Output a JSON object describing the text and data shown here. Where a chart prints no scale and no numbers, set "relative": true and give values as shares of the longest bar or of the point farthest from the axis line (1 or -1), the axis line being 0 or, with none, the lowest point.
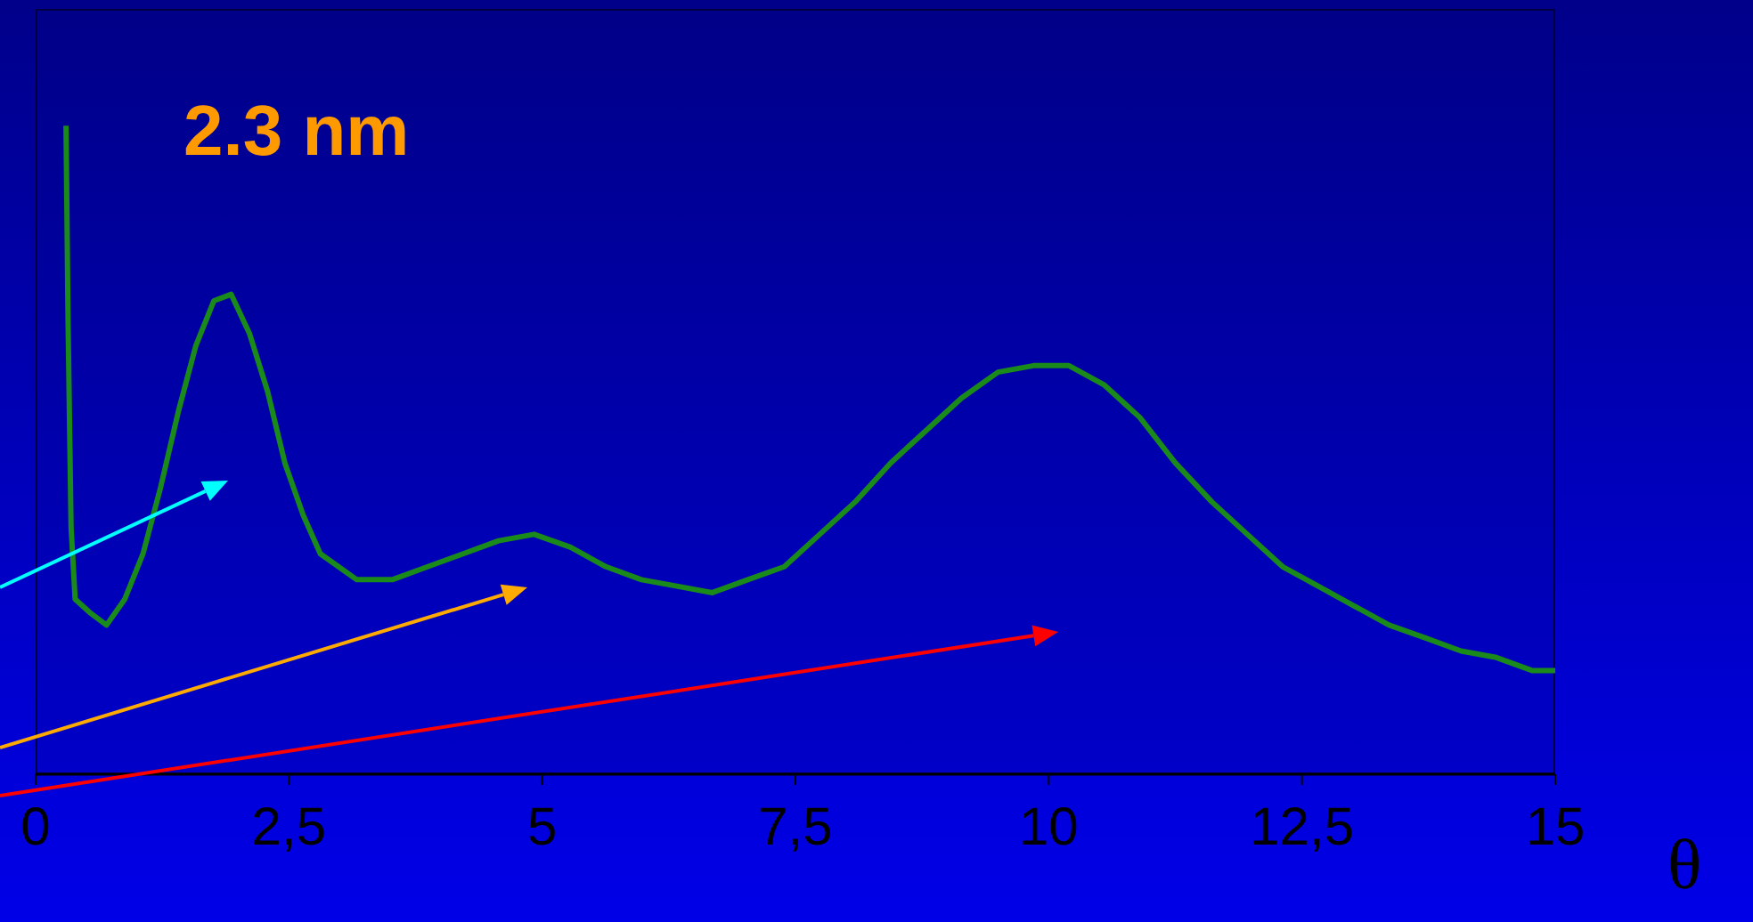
{
  "chart_data": {
    "type": "line",
    "relative": true,
    "xlabel": "θ",
    "annotations": [
      "2.3 nm"
    ],
    "xlim": [
      0,
      15
    ],
    "xticks": [
      0,
      {
        "value": 2.5,
        "label": "2,5"
      },
      5,
      {
        "value": 7.5,
        "label": "7,5"
      },
      10,
      {
        "value": 12.5,
        "label": "12,5"
      },
      15
    ],
    "x": [
      0.3,
      0.32,
      0.35,
      0.39,
      0.53,
      0.7,
      0.88,
      1.06,
      1.23,
      1.41,
      1.58,
      1.76,
      1.93,
      2.11,
      2.29,
      2.46,
      2.64,
      2.81,
      2.99,
      3.17,
      3.52,
      3.87,
      4.22,
      4.57,
      4.92,
      5.28,
      5.63,
      5.98,
      6.33,
      6.68,
      7.03,
      7.39,
      7.74,
      8.09,
      8.44,
      8.79,
      9.14,
      9.5,
      9.85,
      10.2,
      10.55,
      10.9,
      11.25,
      11.61,
      11.96,
      12.31,
      12.66,
      13.01,
      13.36,
      13.72,
      14.07,
      14.42,
      14.77,
      15.0
    ],
    "series": [
      {
        "color": "#1a8a1a",
        "values": [
          1.0,
          0.7,
          0.38,
          0.27,
          0.25,
          0.23,
          0.27,
          0.34,
          0.44,
          0.56,
          0.66,
          0.73,
          0.74,
          0.68,
          0.59,
          0.48,
          0.4,
          0.34,
          0.32,
          0.3,
          0.3,
          0.32,
          0.34,
          0.36,
          0.37,
          0.35,
          0.32,
          0.3,
          0.29,
          0.28,
          0.3,
          0.32,
          0.37,
          0.42,
          0.48,
          0.53,
          0.58,
          0.62,
          0.63,
          0.63,
          0.6,
          0.55,
          0.48,
          0.42,
          0.37,
          0.32,
          0.29,
          0.26,
          0.23,
          0.21,
          0.19,
          0.18,
          0.16,
          0.16
        ]
      }
    ],
    "grid": false,
    "legend": false,
    "marker": "none",
    "line_style": "solid"
  }
}
